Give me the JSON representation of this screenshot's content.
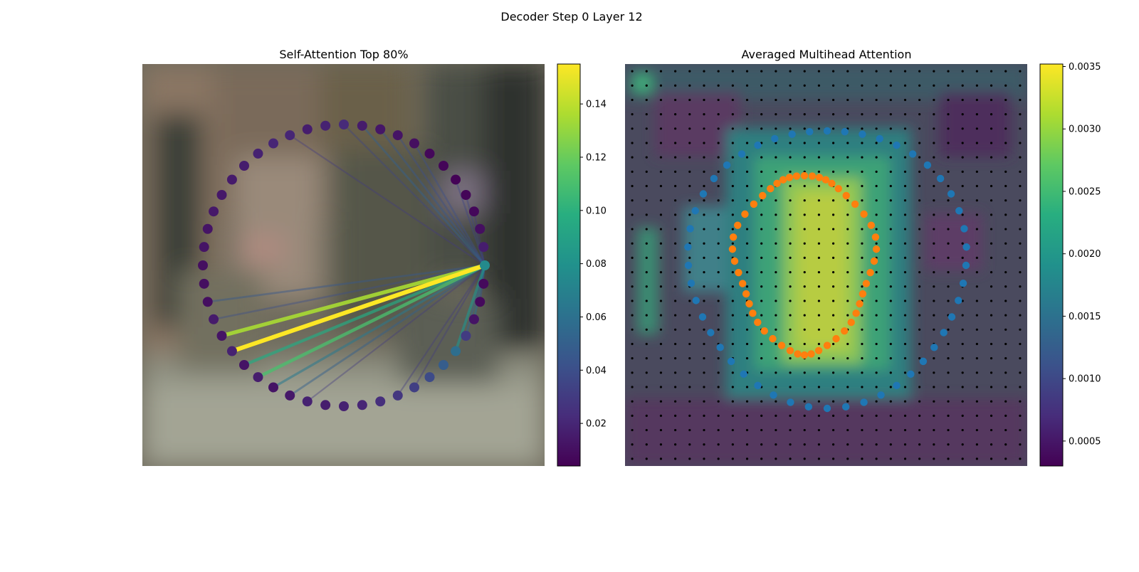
{
  "figure": {
    "suptitle": "Decoder Step 0 Layer 12"
  },
  "chart_data": [
    {
      "type": "scatter",
      "title": "Self-Attention Top 80%",
      "description_points": "48 boundary points on a circle over a blurred photo; lines connect the query point to attended points, colored by attention weight",
      "colorbar": {
        "colormap": "viridis",
        "range": [
          0.004,
          0.155
        ],
        "ticks": [
          0.02,
          0.04,
          0.06,
          0.08,
          0.1,
          0.12,
          0.14
        ],
        "tick_labels": [
          "0.02",
          "0.04",
          "0.06",
          "0.08",
          "0.10",
          "0.12",
          "0.14"
        ]
      },
      "n_points": 48,
      "query_index": 0,
      "point_weights": [
        0.075,
        0.016,
        0.01,
        0.007,
        0.006,
        0.005,
        0.006,
        0.007,
        0.01,
        0.012,
        0.013,
        0.015,
        0.022,
        0.018,
        0.016,
        0.02,
        0.02,
        0.018,
        0.016,
        0.015,
        0.014,
        0.014,
        0.012,
        0.012,
        0.01,
        0.01,
        0.01,
        0.015,
        0.012,
        0.018,
        0.012,
        0.016,
        0.012,
        0.014,
        0.018,
        0.016,
        0.018,
        0.02,
        0.024,
        0.028,
        0.032,
        0.038,
        0.048,
        0.058,
        0.03,
        0.012,
        0.008,
        0.008
      ],
      "edges": [
        {
          "to": 29,
          "weight": 0.155
        },
        {
          "to": 28,
          "weight": 0.135
        },
        {
          "to": 31,
          "weight": 0.11
        },
        {
          "to": 30,
          "weight": 0.095
        },
        {
          "to": 32,
          "weight": 0.065
        },
        {
          "to": 43,
          "weight": 0.08
        },
        {
          "to": 44,
          "weight": 0.055
        },
        {
          "to": 45,
          "weight": 0.06
        },
        {
          "to": 46,
          "weight": 0.045
        },
        {
          "to": 27,
          "weight": 0.04
        },
        {
          "to": 33,
          "weight": 0.05
        },
        {
          "to": 26,
          "weight": 0.045
        },
        {
          "to": 12,
          "weight": 0.035
        },
        {
          "to": 11,
          "weight": 0.05
        },
        {
          "to": 10,
          "weight": 0.045
        },
        {
          "to": 9,
          "weight": 0.04
        },
        {
          "to": 8,
          "weight": 0.04
        },
        {
          "to": 5,
          "weight": 0.035
        },
        {
          "to": 4,
          "weight": 0.035
        },
        {
          "to": 3,
          "weight": 0.03
        },
        {
          "to": 34,
          "weight": 0.03
        },
        {
          "to": 40,
          "weight": 0.03
        },
        {
          "to": 39,
          "weight": 0.03
        },
        {
          "to": 15,
          "weight": 0.03
        }
      ]
    },
    {
      "type": "heatmap",
      "title": "Averaged Multihead Attention",
      "grid_size": 28,
      "colorbar": {
        "colormap": "viridis",
        "range": [
          0.0003,
          0.00352
        ],
        "ticks": [
          0.0005,
          0.001,
          0.0015,
          0.002,
          0.0025,
          0.003,
          0.0035
        ],
        "tick_labels": [
          "0.0005",
          "0.0010",
          "0.0015",
          "0.0020",
          "0.0025",
          "0.0030",
          "0.0035"
        ]
      },
      "series": [
        {
          "marker": "reference points",
          "color": "#000000"
        },
        {
          "marker": "outer contour",
          "color": "#1f77b4",
          "count": 48
        },
        {
          "marker": "inner contour",
          "color": "#ff7f0e",
          "count": 48
        }
      ]
    }
  ]
}
